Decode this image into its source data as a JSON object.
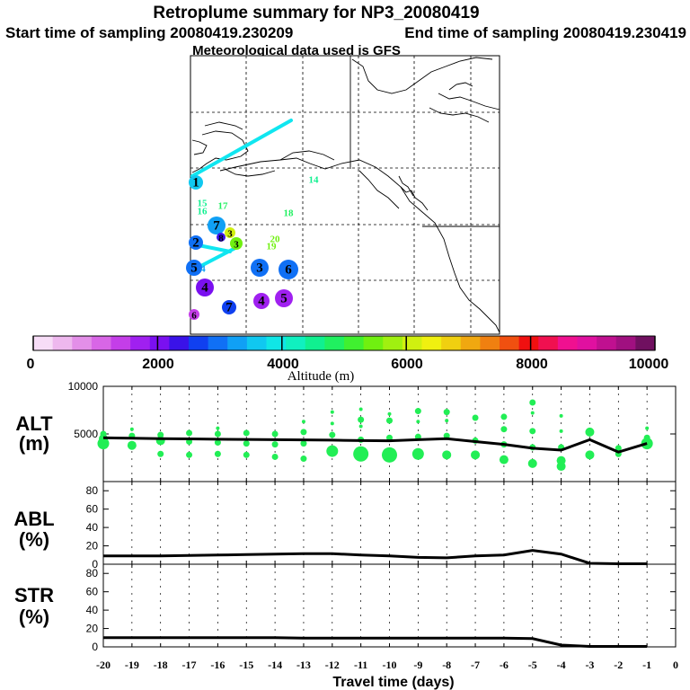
{
  "title": {
    "line1": "Retroplume summary for NP3_20080419",
    "start": "Start time of sampling 20080419.230209",
    "end": "End time of sampling 20080419.230419",
    "met": "Meteorological data used is GFS"
  },
  "colorbar": {
    "label": "Altitude (m)",
    "tick_labels": [
      "0",
      "2000",
      "4000",
      "6000",
      "8000",
      "10000"
    ],
    "ticks": [
      0,
      2000,
      4000,
      6000,
      8000,
      10000
    ],
    "colors": [
      "#f7ddf7",
      "#eeb8ee",
      "#e38fe8",
      "#d866e6",
      "#c43ee8",
      "#a020f0",
      "#7a10f0",
      "#3a12e8",
      "#1040f0",
      "#1070f5",
      "#10a0f5",
      "#10c8f0",
      "#10e6e6",
      "#10f0c0",
      "#10f090",
      "#20f060",
      "#40f030",
      "#70f010",
      "#a0f010",
      "#d0f010",
      "#f0f010",
      "#f0d010",
      "#f0a810",
      "#f08010",
      "#f05010",
      "#f01010",
      "#f01050",
      "#f01090",
      "#e010a0",
      "#c01090",
      "#a01080",
      "#701060"
    ]
  },
  "map": {
    "markers": [
      {
        "label": "1",
        "alt": 3600
      },
      {
        "label": "14",
        "alt": 4500
      },
      {
        "label": "15",
        "alt": 4600
      },
      {
        "label": "16",
        "alt": 4600
      },
      {
        "label": "17",
        "alt": 4700
      },
      {
        "label": "18",
        "alt": 4700
      },
      {
        "label": "7",
        "alt": 3200
      },
      {
        "label": "3",
        "alt": 6000
      },
      {
        "label": "2",
        "alt": 3000
      },
      {
        "label": "20",
        "alt": 5600
      },
      {
        "label": "19",
        "alt": 5500
      },
      {
        "label": "8",
        "alt": 2200
      },
      {
        "label": "3",
        "alt": 5600
      },
      {
        "label": "5",
        "alt": 3000
      },
      {
        "label": "4",
        "alt": 3200
      },
      {
        "label": "3",
        "alt": 2900
      },
      {
        "label": "6",
        "alt": 2900
      },
      {
        "label": "4",
        "alt": 2100
      },
      {
        "label": "7",
        "alt": 2800
      },
      {
        "label": "4",
        "alt": 1600
      },
      {
        "label": "5",
        "alt": 1700
      },
      {
        "label": "6",
        "alt": 1400
      }
    ]
  },
  "chart_data": [
    {
      "type": "scatter",
      "panel": "ALT",
      "ylabel_top": "ALT",
      "ylabel_bottom": "(m)",
      "xlabel": "Travel time (days)",
      "xlim": [
        -20,
        0
      ],
      "ylim": [
        0,
        10000
      ],
      "ytick_labels": [
        "5000",
        "10000"
      ],
      "yticks": [
        5000,
        10000
      ],
      "mean_line": {
        "x": [
          -20,
          -19,
          -18,
          -17,
          -16,
          -15,
          -14,
          -13,
          -12,
          -11,
          -10,
          -9,
          -8,
          -7,
          -6,
          -5,
          -4,
          -3,
          -2,
          -1
        ],
        "y": [
          4600,
          4550,
          4500,
          4480,
          4450,
          4420,
          4400,
          4380,
          4350,
          4300,
          4280,
          4400,
          4500,
          4200,
          3900,
          3500,
          3300,
          4400,
          3100,
          4000
        ]
      },
      "points": [
        {
          "x": -20,
          "y": 4000,
          "s": 3
        },
        {
          "x": -20,
          "y": 4500,
          "s": 2
        },
        {
          "x": -20,
          "y": 5000,
          "s": 1
        },
        {
          "x": -19,
          "y": 3800,
          "s": 2
        },
        {
          "x": -19,
          "y": 4800,
          "s": 1
        },
        {
          "x": -19,
          "y": 5500,
          "s": 0
        },
        {
          "x": -18,
          "y": 2900,
          "s": 1
        },
        {
          "x": -18,
          "y": 4300,
          "s": 2
        },
        {
          "x": -18,
          "y": 4900,
          "s": 1
        },
        {
          "x": -17,
          "y": 2800,
          "s": 1
        },
        {
          "x": -17,
          "y": 4200,
          "s": 1
        },
        {
          "x": -17,
          "y": 5100,
          "s": 1
        },
        {
          "x": -16,
          "y": 2900,
          "s": 1
        },
        {
          "x": -16,
          "y": 4100,
          "s": 1
        },
        {
          "x": -16,
          "y": 5000,
          "s": 1
        },
        {
          "x": -16,
          "y": 5600,
          "s": 0
        },
        {
          "x": -15,
          "y": 2800,
          "s": 1
        },
        {
          "x": -15,
          "y": 4000,
          "s": 1
        },
        {
          "x": -15,
          "y": 5100,
          "s": 1
        },
        {
          "x": -14,
          "y": 2600,
          "s": 1
        },
        {
          "x": -14,
          "y": 3900,
          "s": 1
        },
        {
          "x": -14,
          "y": 5000,
          "s": 1
        },
        {
          "x": -13,
          "y": 2400,
          "s": 1
        },
        {
          "x": -13,
          "y": 4000,
          "s": 1
        },
        {
          "x": -13,
          "y": 5200,
          "s": 1
        },
        {
          "x": -13,
          "y": 6300,
          "s": 0
        },
        {
          "x": -12,
          "y": 3200,
          "s": 3
        },
        {
          "x": -12,
          "y": 4900,
          "s": 1
        },
        {
          "x": -12,
          "y": 6100,
          "s": 0
        },
        {
          "x": -12,
          "y": 7300,
          "s": 0
        },
        {
          "x": -11,
          "y": 2900,
          "s": 4
        },
        {
          "x": -11,
          "y": 4400,
          "s": 1
        },
        {
          "x": -11,
          "y": 5800,
          "s": 0
        },
        {
          "x": -11,
          "y": 6500,
          "s": 1
        },
        {
          "x": -11,
          "y": 7600,
          "s": 0
        },
        {
          "x": -10,
          "y": 2800,
          "s": 4
        },
        {
          "x": -10,
          "y": 4600,
          "s": 1
        },
        {
          "x": -10,
          "y": 6400,
          "s": 1
        },
        {
          "x": -10,
          "y": 7100,
          "s": 0
        },
        {
          "x": -9,
          "y": 2900,
          "s": 3
        },
        {
          "x": -9,
          "y": 4700,
          "s": 1
        },
        {
          "x": -9,
          "y": 6300,
          "s": 0
        },
        {
          "x": -9,
          "y": 7400,
          "s": 1
        },
        {
          "x": -8,
          "y": 2800,
          "s": 2
        },
        {
          "x": -8,
          "y": 4800,
          "s": 1
        },
        {
          "x": -8,
          "y": 6400,
          "s": 0
        },
        {
          "x": -8,
          "y": 7300,
          "s": 1
        },
        {
          "x": -7,
          "y": 2800,
          "s": 2
        },
        {
          "x": -7,
          "y": 4300,
          "s": 1
        },
        {
          "x": -7,
          "y": 6700,
          "s": 1
        },
        {
          "x": -6,
          "y": 2300,
          "s": 2
        },
        {
          "x": -6,
          "y": 3900,
          "s": 1
        },
        {
          "x": -6,
          "y": 5500,
          "s": 1
        },
        {
          "x": -6,
          "y": 6800,
          "s": 1
        },
        {
          "x": -5,
          "y": 1900,
          "s": 2
        },
        {
          "x": -5,
          "y": 3600,
          "s": 1
        },
        {
          "x": -5,
          "y": 5300,
          "s": 1
        },
        {
          "x": -5,
          "y": 7200,
          "s": 0
        },
        {
          "x": -5,
          "y": 8300,
          "s": 1
        },
        {
          "x": -4,
          "y": 1600,
          "s": 2
        },
        {
          "x": -4,
          "y": 2200,
          "s": 2
        },
        {
          "x": -4,
          "y": 3600,
          "s": 1
        },
        {
          "x": -4,
          "y": 5300,
          "s": 0
        },
        {
          "x": -4,
          "y": 6900,
          "s": 0
        },
        {
          "x": -3,
          "y": 2800,
          "s": 2
        },
        {
          "x": -3,
          "y": 5200,
          "s": 2
        },
        {
          "x": -2,
          "y": 2900,
          "s": 1
        },
        {
          "x": -2,
          "y": 3500,
          "s": 1
        },
        {
          "x": -1,
          "y": 4000,
          "s": 3
        },
        {
          "x": -1,
          "y": 4600,
          "s": 1
        },
        {
          "x": -1,
          "y": 5600,
          "s": 0
        }
      ]
    },
    {
      "type": "line",
      "panel": "ABL",
      "ylabel_top": "ABL",
      "ylabel_bottom": "(%)",
      "xlim": [
        -20,
        0
      ],
      "ylim": [
        0,
        90
      ],
      "ytick_labels": [
        "0",
        "20",
        "40",
        "60",
        "80"
      ],
      "yticks": [
        0,
        20,
        40,
        60,
        80
      ],
      "x": [
        -20,
        -19,
        -18,
        -17,
        -16,
        -15,
        -14,
        -13,
        -12,
        -11,
        -10,
        -9,
        -8,
        -7,
        -6,
        -5,
        -4,
        -3,
        -2,
        -1
      ],
      "y": [
        9,
        9,
        9,
        9.5,
        10,
        10.5,
        11,
        11.5,
        11.5,
        10,
        9,
        7.5,
        7,
        9,
        10,
        15,
        11,
        1,
        0.5,
        0.5
      ]
    },
    {
      "type": "line",
      "panel": "STR",
      "ylabel_top": "STR",
      "ylabel_bottom": "(%)",
      "xlim": [
        -20,
        0
      ],
      "ylim": [
        0,
        90
      ],
      "ytick_labels": [
        "0",
        "20",
        "40",
        "60",
        "80"
      ],
      "yticks": [
        0,
        20,
        40,
        60,
        80
      ],
      "xtick_labels": [
        "-20",
        "-19",
        "-18",
        "-17",
        "-16",
        "-15",
        "-14",
        "-13",
        "-12",
        "-11",
        "-10",
        "-9",
        "-8",
        "-7",
        "-6",
        "-5",
        "-4",
        "-3",
        "-2",
        "-1",
        "0"
      ],
      "x": [
        -20,
        -19,
        -18,
        -17,
        -16,
        -15,
        -14,
        -13,
        -12,
        -11,
        -10,
        -9,
        -8,
        -7,
        -6,
        -5,
        -4,
        -3,
        -2,
        -1
      ],
      "y": [
        10,
        10,
        10,
        10,
        10,
        10,
        10,
        9.5,
        9.5,
        9.5,
        9.5,
        9.5,
        9.5,
        9.5,
        9.5,
        9,
        2,
        0.5,
        0.5,
        0.5
      ]
    }
  ]
}
